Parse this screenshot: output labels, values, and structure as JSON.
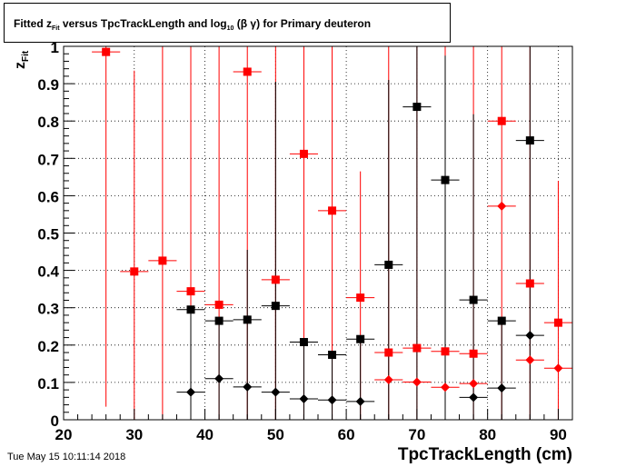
{
  "chart_data": {
    "type": "scatter",
    "title": {
      "prefix": "Fitted  z",
      "sub1": "Fit",
      "middle": "  versus TpcTrackLength and log",
      "sub2": "10",
      "suffix": " (β γ) for Primary deuteron"
    },
    "ylabel": {
      "main": "z",
      "sub": "Fit"
    },
    "xlabel": "TpcTrackLength (cm)",
    "xlim": [
      20,
      92
    ],
    "ylim": [
      0,
      1
    ],
    "x_ticks": [
      20,
      30,
      40,
      50,
      60,
      70,
      80,
      90
    ],
    "x_tick_labels": [
      "20",
      "30",
      "40",
      "50",
      "60",
      "70",
      "80",
      "90"
    ],
    "y_ticks": [
      0,
      0.1,
      0.2,
      0.3,
      0.4,
      0.5,
      0.6,
      0.7,
      0.8,
      0.9,
      1
    ],
    "y_tick_labels": [
      "0",
      "0.1",
      "0.2",
      "0.3",
      "0.4",
      "0.5",
      "0.6",
      "0.7",
      "0.8",
      "0.9",
      "1"
    ],
    "grid": true,
    "x_err": 2,
    "series": [
      {
        "marker": "square",
        "color": "#ff0000",
        "points": [
          {
            "x": 26,
            "y": 0.985,
            "ylo": 0.035,
            "yhi": 1.0
          },
          {
            "x": 30,
            "y": 0.397,
            "ylo": 0.0,
            "yhi": 0.935
          },
          {
            "x": 34,
            "y": 0.426,
            "ylo": 0.0,
            "yhi": 1.0
          },
          {
            "x": 38,
            "y": 0.344,
            "ylo": 0.0,
            "yhi": 1.0
          },
          {
            "x": 42,
            "y": 0.308,
            "ylo": 0.0,
            "yhi": 1.0
          },
          {
            "x": 46,
            "y": 0.932,
            "ylo": 0.0,
            "yhi": 1.0
          },
          {
            "x": 50,
            "y": 0.375,
            "ylo": 0.0,
            "yhi": 1.0
          },
          {
            "x": 54,
            "y": 0.712,
            "ylo": 0.0,
            "yhi": 1.0
          },
          {
            "x": 58,
            "y": 0.56,
            "ylo": 0.0,
            "yhi": 1.0
          },
          {
            "x": 62,
            "y": 0.327,
            "ylo": 0.0,
            "yhi": 0.665
          },
          {
            "x": 66,
            "y": 0.18,
            "ylo": 0.0,
            "yhi": 1.0
          },
          {
            "x": 70,
            "y": 0.192,
            "ylo": 0.0,
            "yhi": 1.0
          },
          {
            "x": 74,
            "y": 0.183,
            "ylo": 0.0,
            "yhi": 1.0
          },
          {
            "x": 78,
            "y": 0.177,
            "ylo": 0.0,
            "yhi": 1.0
          },
          {
            "x": 82,
            "y": 0.8,
            "ylo": 0.0,
            "yhi": 1.0
          },
          {
            "x": 86,
            "y": 0.365,
            "ylo": 0.0,
            "yhi": 1.0
          },
          {
            "x": 90,
            "y": 0.26,
            "ylo": 0.0,
            "yhi": 0.64
          }
        ]
      },
      {
        "marker": "square",
        "color": "#000000",
        "points": [
          {
            "x": 38,
            "y": 0.295,
            "ylo": 0.0,
            "yhi": 0.295
          },
          {
            "x": 42,
            "y": 0.265,
            "ylo": 0.0,
            "yhi": 0.265
          },
          {
            "x": 46,
            "y": 0.268,
            "ylo": 0.0,
            "yhi": 0.455
          },
          {
            "x": 50,
            "y": 0.305,
            "ylo": 0.0,
            "yhi": 0.905
          },
          {
            "x": 54,
            "y": 0.208,
            "ylo": 0.0,
            "yhi": 0.208
          },
          {
            "x": 58,
            "y": 0.174,
            "ylo": 0.0,
            "yhi": 0.174
          },
          {
            "x": 62,
            "y": 0.216,
            "ylo": 0.0,
            "yhi": 0.216
          },
          {
            "x": 66,
            "y": 0.415,
            "ylo": 0.0,
            "yhi": 0.91
          },
          {
            "x": 70,
            "y": 0.838,
            "ylo": 0.0,
            "yhi": 1.0
          },
          {
            "x": 74,
            "y": 0.642,
            "ylo": 0.0,
            "yhi": 0.975
          },
          {
            "x": 78,
            "y": 0.321,
            "ylo": 0.0,
            "yhi": 0.818
          },
          {
            "x": 82,
            "y": 0.265,
            "ylo": 0.0,
            "yhi": 0.265
          },
          {
            "x": 86,
            "y": 0.748,
            "ylo": 0.0,
            "yhi": 1.0
          }
        ]
      },
      {
        "marker": "diamond",
        "color": "#ff0000",
        "points": [
          {
            "x": 66,
            "y": 0.107,
            "ylo": 0.107,
            "yhi": 0.107
          },
          {
            "x": 70,
            "y": 0.101,
            "ylo": 0.101,
            "yhi": 0.101
          },
          {
            "x": 74,
            "y": 0.087,
            "ylo": 0.087,
            "yhi": 0.087
          },
          {
            "x": 78,
            "y": 0.097,
            "ylo": 0.097,
            "yhi": 0.097
          },
          {
            "x": 82,
            "y": 0.572,
            "ylo": 0.572,
            "yhi": 0.572
          },
          {
            "x": 86,
            "y": 0.16,
            "ylo": 0.16,
            "yhi": 0.16
          },
          {
            "x": 90,
            "y": 0.138,
            "ylo": 0.138,
            "yhi": 0.138
          }
        ]
      },
      {
        "marker": "diamond",
        "color": "#000000",
        "points": [
          {
            "x": 38,
            "y": 0.074,
            "ylo": 0.074,
            "yhi": 0.074
          },
          {
            "x": 42,
            "y": 0.11,
            "ylo": 0.11,
            "yhi": 0.11
          },
          {
            "x": 46,
            "y": 0.088,
            "ylo": 0.088,
            "yhi": 0.088
          },
          {
            "x": 50,
            "y": 0.074,
            "ylo": 0.074,
            "yhi": 0.074
          },
          {
            "x": 54,
            "y": 0.056,
            "ylo": 0.056,
            "yhi": 0.056
          },
          {
            "x": 58,
            "y": 0.053,
            "ylo": 0.053,
            "yhi": 0.053
          },
          {
            "x": 62,
            "y": 0.049,
            "ylo": 0.049,
            "yhi": 0.049
          },
          {
            "x": 78,
            "y": 0.06,
            "ylo": 0.06,
            "yhi": 0.06
          },
          {
            "x": 82,
            "y": 0.085,
            "ylo": 0.085,
            "yhi": 0.085
          },
          {
            "x": 86,
            "y": 0.226,
            "ylo": 0.226,
            "yhi": 0.226
          }
        ]
      }
    ]
  },
  "footer": {
    "datestamp": "Tue May 15 10:11:14 2018"
  }
}
